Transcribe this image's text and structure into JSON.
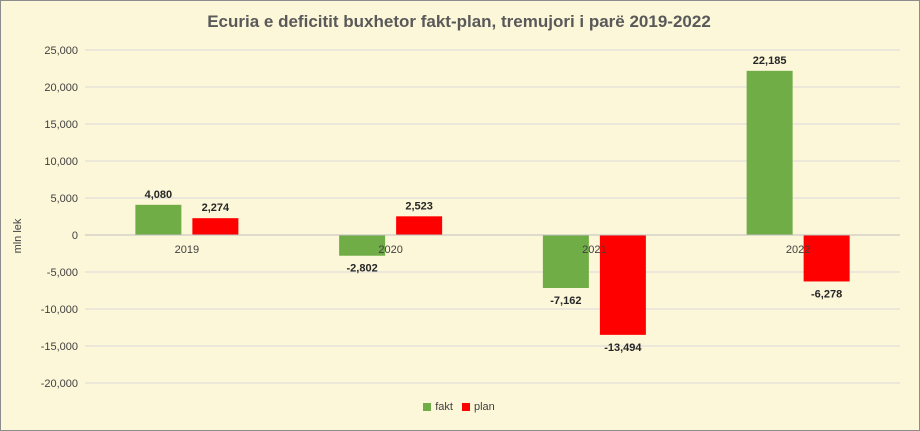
{
  "chart_data": {
    "type": "bar",
    "title": "Ecuria e deficitit buxhetor fakt-plan, tremujori i parë 2019-2022",
    "xlabel": "",
    "ylabel": "mln lek",
    "categories": [
      "2019",
      "2020",
      "2021",
      "2022"
    ],
    "series": [
      {
        "name": "fakt",
        "values": [
          4080,
          -2802,
          -7162,
          22185
        ],
        "labels": [
          "4,080",
          "-2,802",
          "-7,162",
          "22,185"
        ],
        "color": "#70ad47"
      },
      {
        "name": "plan",
        "values": [
          2274,
          2523,
          -13494,
          -6278
        ],
        "labels": [
          "2,274",
          "2,523",
          "-13,494",
          "-6,278"
        ],
        "color": "#ff0000"
      }
    ],
    "ylim": [
      -20000,
      25000
    ],
    "yticks": [
      25000,
      20000,
      15000,
      10000,
      5000,
      0,
      -5000,
      -10000,
      -15000,
      -20000
    ],
    "ytick_labels": [
      "25,000",
      "20,000",
      "15,000",
      "10,000",
      "5,000",
      "0",
      "-5,000",
      "-10,000",
      "-15,000",
      "-20,000"
    ],
    "grid": true,
    "legend_position": "bottom",
    "background_color": "#fdf7d9",
    "gridline_color": "#d9d9d9"
  }
}
